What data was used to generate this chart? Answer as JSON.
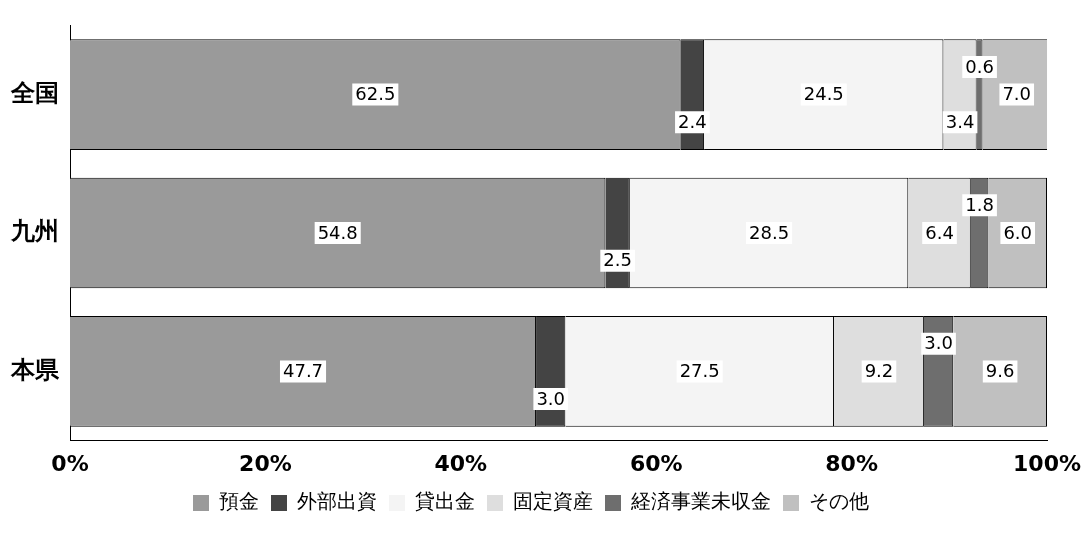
{
  "chart_data": {
    "type": "bar",
    "orientation": "horizontal",
    "stacked": true,
    "categories": [
      "全国",
      "九州",
      "本県"
    ],
    "series": [
      {
        "name": "預金",
        "color": "#9a9a9a",
        "values": [
          62.5,
          54.8,
          47.7
        ],
        "value_labels": [
          "62.5",
          "54.8",
          "47.7"
        ]
      },
      {
        "name": "外部出資",
        "color": "#444444",
        "values": [
          2.4,
          2.5,
          3.0
        ],
        "value_labels": [
          "2.4",
          "2.5",
          "3.0"
        ]
      },
      {
        "name": "貸出金",
        "color": "#f4f4f4",
        "values": [
          24.5,
          28.5,
          27.5
        ],
        "value_labels": [
          "24.5",
          "28.5",
          "27.5"
        ]
      },
      {
        "name": "固定資産",
        "color": "#dedede",
        "values": [
          3.4,
          6.4,
          9.2
        ],
        "value_labels": [
          "3.4",
          "6.4",
          "9.2"
        ]
      },
      {
        "name": "経済事業未収金",
        "color": "#6e6e6e",
        "values": [
          0.6,
          1.8,
          3.0
        ],
        "value_labels": [
          "0.6",
          "1.8",
          "3.0"
        ]
      },
      {
        "name": "その他",
        "color": "#c0c0c0",
        "values": [
          7.0,
          6.0,
          9.6
        ],
        "value_labels": [
          "7.0",
          "6.0",
          "9.6"
        ]
      }
    ],
    "xlim": [
      0,
      100
    ],
    "xticks": [
      {
        "value": 0,
        "label": "0%"
      },
      {
        "value": 20,
        "label": "20%"
      },
      {
        "value": 40,
        "label": "40%"
      },
      {
        "value": 60,
        "label": "60%"
      },
      {
        "value": 80,
        "label": "80%"
      },
      {
        "value": 100,
        "label": "100%"
      }
    ],
    "grid": false,
    "legend": "bottom"
  }
}
